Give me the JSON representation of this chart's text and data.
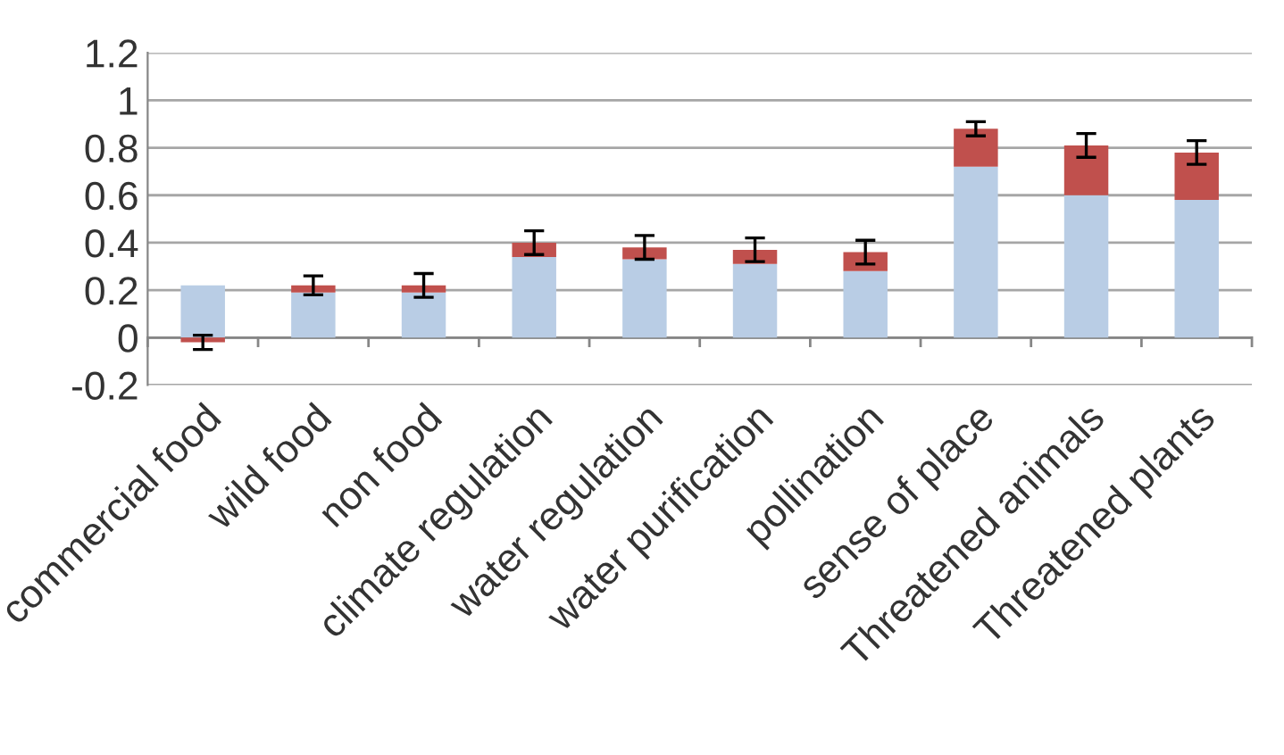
{
  "chart_data": {
    "type": "bar",
    "stacked": true,
    "categories": [
      "commercial food",
      "wild food",
      "non food",
      "climate regulation",
      "water regulation",
      "water purification",
      "pollination",
      "sense of place",
      "Threatened animals",
      "Threatened plants"
    ],
    "series": [
      {
        "color": "#b9cde5",
        "values": [
          0.22,
          0.19,
          0.19,
          0.34,
          0.33,
          0.31,
          0.28,
          0.72,
          0.6,
          0.58
        ]
      },
      {
        "color": "#c0504d",
        "values": [
          -0.02,
          0.03,
          0.03,
          0.06,
          0.05,
          0.06,
          0.08,
          0.16,
          0.21,
          0.2
        ],
        "errors": [
          0.03,
          0.04,
          0.05,
          0.05,
          0.05,
          0.05,
          0.05,
          0.03,
          0.05,
          0.05
        ]
      }
    ],
    "ylim": [
      -0.2,
      1.2
    ],
    "yticks": [
      -0.2,
      0,
      0.2,
      0.4,
      0.6,
      0.8,
      1,
      1.2
    ],
    "grid": "y",
    "legend": false
  }
}
